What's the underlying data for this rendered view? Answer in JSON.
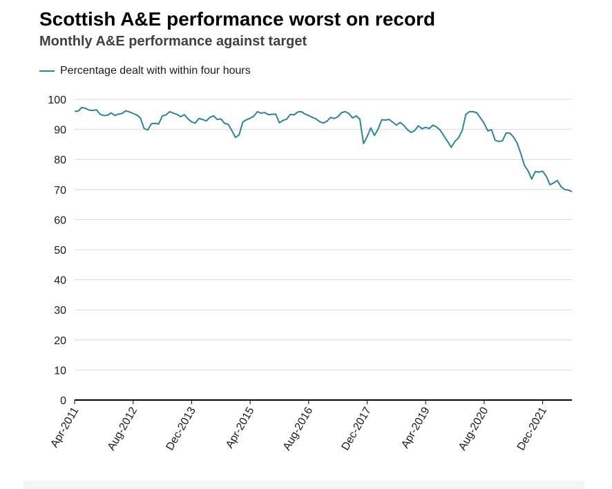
{
  "chart_data": {
    "type": "line",
    "title": "Scottish A&E performance worst on record",
    "subtitle": "Monthly A&E performance against target",
    "xlabel": "",
    "ylabel": "",
    "ylim": [
      0,
      100
    ],
    "yticks": [
      "0",
      "10",
      "20",
      "30",
      "40",
      "50",
      "60",
      "70",
      "80",
      "90",
      "100"
    ],
    "xtick_labels": [
      "Apr-2011",
      "Aug-2012",
      "Dec-2013",
      "Apr-2015",
      "Aug-2016",
      "Dec-2017",
      "Apr-2019",
      "Aug-2020",
      "Dec-2021"
    ],
    "legend_position": "top-left",
    "grid": true,
    "colors": {
      "line": "#2a8499",
      "grid": "#d9d9d9",
      "axis": "#000000"
    },
    "x_start": "Apr-2011",
    "x_end": "Jul-2022",
    "series": [
      {
        "name": "Percentage dealt with within four hours",
        "values": [
          96.0,
          96.1,
          97.3,
          97.0,
          96.4,
          96.3,
          96.5,
          95.0,
          94.6,
          94.7,
          95.5,
          94.6,
          95.1,
          95.3,
          96.2,
          95.8,
          95.3,
          94.8,
          93.8,
          90.3,
          89.8,
          91.9,
          92.0,
          91.8,
          94.5,
          94.8,
          95.9,
          95.4,
          95.0,
          94.2,
          94.9,
          93.5,
          92.5,
          92.1,
          93.6,
          93.3,
          92.8,
          94.0,
          94.5,
          93.3,
          93.5,
          92.0,
          91.7,
          89.6,
          87.3,
          88.2,
          92.5,
          93.2,
          93.7,
          94.4,
          95.9,
          95.4,
          95.6,
          94.9,
          95.0,
          95.1,
          92.2,
          93.0,
          93.4,
          95.0,
          94.8,
          95.8,
          95.9,
          95.1,
          94.6,
          94.0,
          93.5,
          92.6,
          92.1,
          92.7,
          94.0,
          93.6,
          94.2,
          95.6,
          95.9,
          95.3,
          93.8,
          94.5,
          93.4,
          85.3,
          87.6,
          90.5,
          88.0,
          90.1,
          93.2,
          93.1,
          93.3,
          92.4,
          91.4,
          92.3,
          91.4,
          89.9,
          89.0,
          89.6,
          91.2,
          90.2,
          90.7,
          90.3,
          91.4,
          90.8,
          89.7,
          87.8,
          86.0,
          84.0,
          86.0,
          87.2,
          89.6,
          95.0,
          95.9,
          95.9,
          95.5,
          93.8,
          92.0,
          89.5,
          89.9,
          86.4,
          86.0,
          86.2,
          88.8,
          88.8,
          87.5,
          85.5,
          82.0,
          78.1,
          76.2,
          73.5,
          76.0,
          75.8,
          76.1,
          74.4,
          71.6,
          72.2,
          73.0,
          71.0,
          70.0,
          69.8,
          69.3
        ]
      }
    ]
  }
}
